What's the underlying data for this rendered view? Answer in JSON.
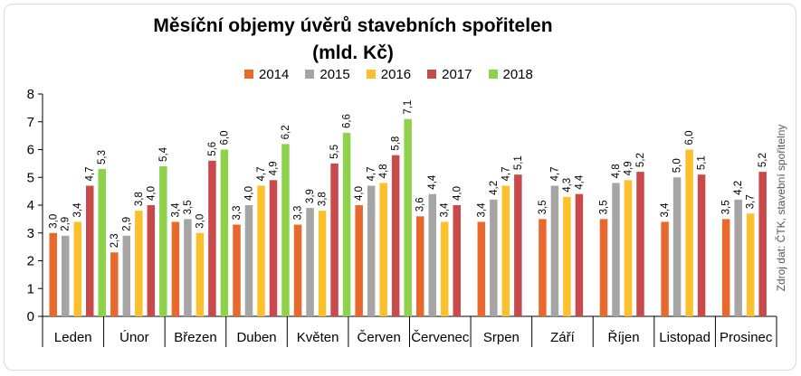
{
  "chart_data": {
    "type": "bar",
    "title": "Měsíční objemy úvěrů stavebních spořitelen",
    "subtitle": "(mld. Kč)",
    "categories": [
      "Leden",
      "Únor",
      "Březen",
      "Duben",
      "Květen",
      "Červen",
      "Červenec",
      "Srpen",
      "Září",
      "Říjen",
      "Listopad",
      "Prosinec"
    ],
    "series": [
      {
        "name": "2014",
        "color": "#e8692b",
        "values": [
          3.0,
          2.3,
          3.4,
          3.3,
          3.3,
          4.0,
          3.6,
          3.4,
          3.5,
          3.5,
          3.4,
          3.5
        ]
      },
      {
        "name": "2015",
        "color": "#a5a5a5",
        "values": [
          2.9,
          2.9,
          3.5,
          4.0,
          3.9,
          4.7,
          4.4,
          4.2,
          4.7,
          4.8,
          5.0,
          4.2
        ]
      },
      {
        "name": "2016",
        "color": "#fcc02d",
        "values": [
          3.4,
          3.8,
          3.0,
          4.7,
          3.8,
          4.8,
          3.4,
          4.7,
          4.3,
          4.9,
          6.0,
          3.7
        ]
      },
      {
        "name": "2017",
        "color": "#c84a4a",
        "values": [
          4.7,
          4.0,
          5.6,
          4.9,
          5.5,
          5.8,
          4.0,
          5.1,
          4.4,
          5.2,
          5.1,
          5.2
        ]
      },
      {
        "name": "2018",
        "color": "#8ed14b",
        "values": [
          5.3,
          5.4,
          6.0,
          6.2,
          6.6,
          7.1,
          null,
          null,
          null,
          null,
          null,
          null
        ]
      }
    ],
    "ylim": [
      0,
      8
    ],
    "yticks": [
      "0",
      "1",
      "2",
      "3",
      "4",
      "5",
      "6",
      "7",
      "8"
    ],
    "xlabel": "",
    "ylabel": "",
    "grid": false,
    "legend_position": "top",
    "source": "Zdroj dat: ČTK, stavební spořitelny"
  }
}
